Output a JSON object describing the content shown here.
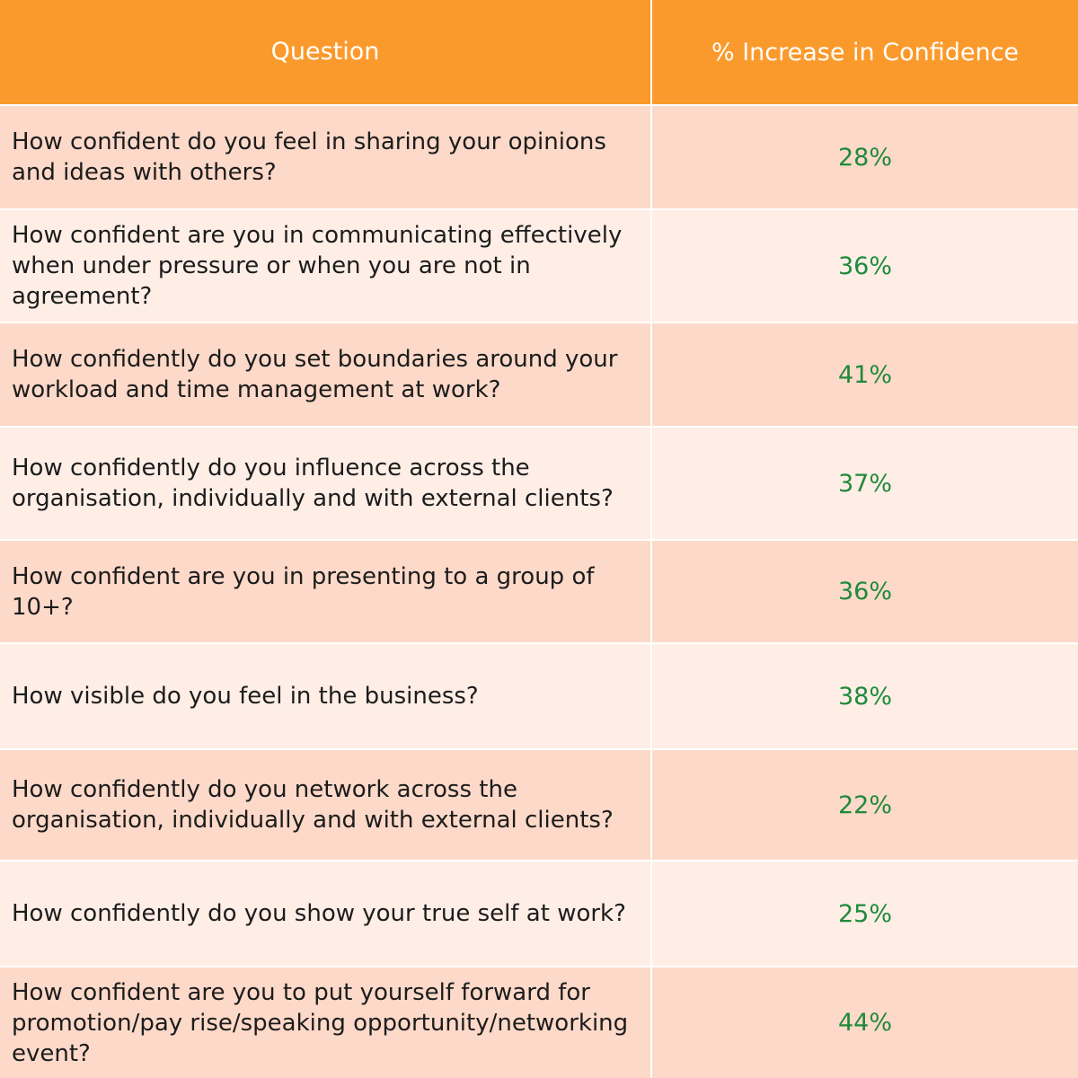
{
  "header": {
    "question": "Question",
    "value": "% Increase in Confidence"
  },
  "rows": [
    {
      "question": "How confident do you feel in sharing your opinions and ideas with others?",
      "value": "28%"
    },
    {
      "question": "How confident are you in communicating effectively when under pressure or when you are not in agreement?",
      "value": "36%"
    },
    {
      "question": "How confidently do you set boundaries around your workload and time management at work?",
      "value": "41%"
    },
    {
      "question": "How confidently do you influence across the organisation, individually and with external clients?",
      "value": "37%"
    },
    {
      "question": "How confident are you in presenting to a group of 10+?",
      "value": "36%"
    },
    {
      "question": "How visible do you feel in the business?",
      "value": "38%"
    },
    {
      "question": "How confidently do you network across the organisation, individually and with external clients?",
      "value": "22%"
    },
    {
      "question": "How confidently do you show your true self at work?",
      "value": "25%"
    },
    {
      "question": "How confident are you to put yourself forward for promotion/pay rise/speaking opportunity/networking event?",
      "value": "44%"
    }
  ],
  "colors": {
    "header": "#fb9a2c",
    "row_dark": "#fdd9c9",
    "row_light": "#feeee6",
    "value_text": "#1f8a3b"
  }
}
